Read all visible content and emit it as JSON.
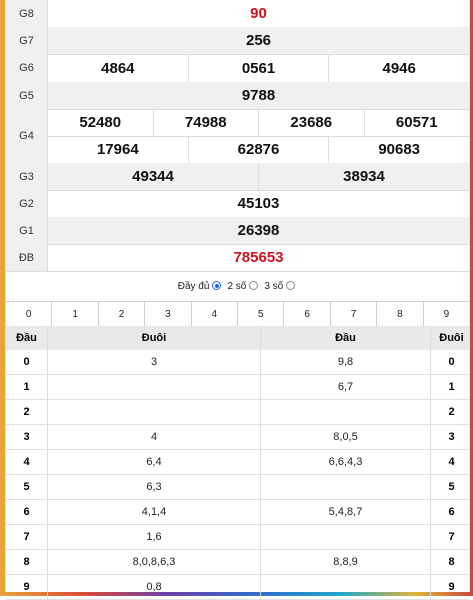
{
  "prizes": [
    {
      "label": "G8",
      "numbers": [
        [
          "90"
        ]
      ],
      "red": true
    },
    {
      "label": "G7",
      "numbers": [
        [
          "256"
        ]
      ]
    },
    {
      "label": "G6",
      "numbers": [
        [
          "4864",
          "0561",
          "4946"
        ]
      ]
    },
    {
      "label": "G5",
      "numbers": [
        [
          "9788"
        ]
      ]
    },
    {
      "label": "G4",
      "numbers": [
        [
          "52480",
          "74988",
          "23686",
          "60571"
        ],
        [
          "17964",
          "62876",
          "90683"
        ]
      ]
    },
    {
      "label": "G3",
      "numbers": [
        [
          "49344",
          "38934"
        ]
      ]
    },
    {
      "label": "G2",
      "numbers": [
        [
          "45103"
        ]
      ]
    },
    {
      "label": "G1",
      "numbers": [
        [
          "26398"
        ]
      ]
    },
    {
      "label": "ĐB",
      "numbers": [
        [
          "785653"
        ]
      ],
      "red": true
    }
  ],
  "options": {
    "full_label": "Đầy đủ",
    "two_digit_label": "2 số",
    "three_digit_label": "3 số",
    "selected": "2 số"
  },
  "digit_filter": [
    "0",
    "1",
    "2",
    "3",
    "4",
    "5",
    "6",
    "7",
    "8",
    "9"
  ],
  "loto": {
    "headers": {
      "dau_left": "Đầu",
      "duoi_left": "Đuôi",
      "dau_right": "Đầu",
      "duoi_right": "Đuôi"
    },
    "rows": [
      {
        "dau": "0",
        "duoi": "3",
        "dau2": "9,8",
        "duoi2": "0"
      },
      {
        "dau": "1",
        "duoi": "",
        "dau2": "6,7",
        "duoi2": "1"
      },
      {
        "dau": "2",
        "duoi": "",
        "dau2": "",
        "duoi2": "2"
      },
      {
        "dau": "3",
        "duoi": "4",
        "dau2": "8,0,5",
        "duoi2": "3"
      },
      {
        "dau": "4",
        "duoi": "6,4",
        "dau2": "6,6,4,3",
        "duoi2": "4"
      },
      {
        "dau": "5",
        "duoi": "6,3",
        "dau2": "",
        "duoi2": "5"
      },
      {
        "dau": "6",
        "duoi": "4,1,4",
        "dau2": "5,4,8,7",
        "duoi2": "6"
      },
      {
        "dau": "7",
        "duoi": "1,6",
        "dau2": "",
        "duoi2": "7"
      },
      {
        "dau": "8",
        "duoi": "8,0,8,6,3",
        "dau2": "8,8,9",
        "duoi2": "8"
      },
      {
        "dau": "9",
        "duoi": "0,8",
        "dau2": "",
        "duoi2": "9"
      }
    ]
  },
  "colors": {
    "accent_red": "#d0121b",
    "radio_blue": "#1a6ed8",
    "row_alt": "#f0f0f0"
  }
}
